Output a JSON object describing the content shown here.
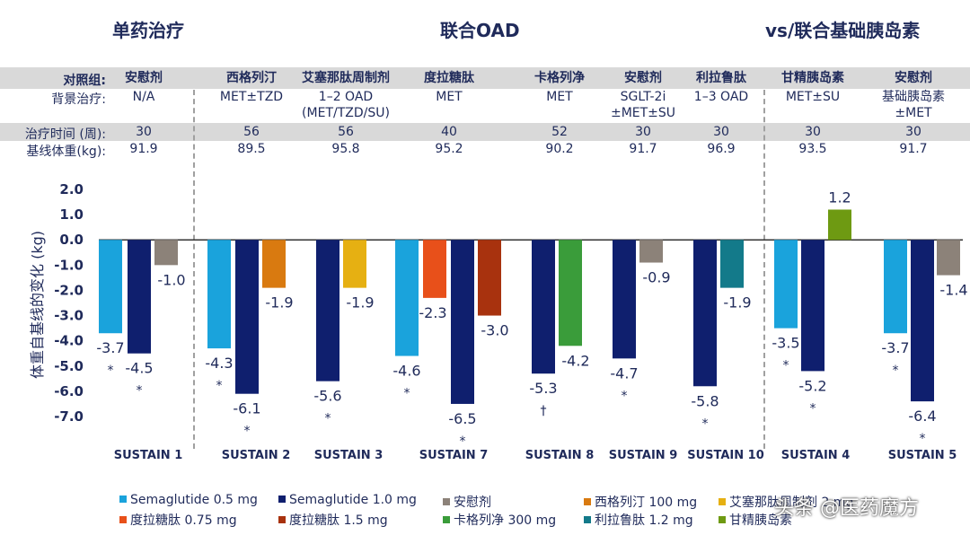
{
  "sections": [
    "单药治疗",
    "联合OAD",
    "vs/联合基础胰岛素"
  ],
  "row_labels": {
    "comparator": "对照组:",
    "background": "背景治疗:",
    "duration": "治疗时间 (周):",
    "baseline": "基线体重(kg):"
  },
  "trials": [
    {
      "comparator": "安慰剂",
      "background": [
        "N/A"
      ],
      "duration": "30",
      "baseline": "91.9"
    },
    {
      "comparator": "西格列汀",
      "background": [
        "MET±TZD"
      ],
      "duration": "56",
      "baseline": "89.5"
    },
    {
      "comparator": "艾塞那肽周制剂",
      "background": [
        "1–2 OAD",
        "(MET/TZD/SU)"
      ],
      "duration": "56",
      "baseline": "95.8"
    },
    {
      "comparator": "度拉糖肽",
      "background": [
        "MET"
      ],
      "duration": "40",
      "baseline": "95.2"
    },
    {
      "comparator": "卡格列净",
      "background": [
        "MET"
      ],
      "duration": "52",
      "baseline": "90.2"
    },
    {
      "comparator": "安慰剂",
      "background": [
        "SGLT-2i",
        "±MET±SU"
      ],
      "duration": "30",
      "baseline": "91.7"
    },
    {
      "comparator": "利拉鲁肽",
      "background": [
        "1–3 OAD"
      ],
      "duration": "30",
      "baseline": "96.9"
    },
    {
      "comparator": "甘精胰岛素",
      "background": [
        "MET±SU"
      ],
      "duration": "30",
      "baseline": "93.5"
    },
    {
      "comparator": "安慰剂",
      "background": [
        "基础胰岛素",
        "±MET"
      ],
      "duration": "30",
      "baseline": "91.7"
    }
  ],
  "colors": {
    "sema05": "#1aa3dc",
    "sema10": "#0f1f6e",
    "placebo": "#8c8279",
    "sitagliptin": "#d97a10",
    "exenatide": "#e6b012",
    "dula075": "#e8501a",
    "dula15": "#a8320e",
    "canagliflozin": "#3a9c3a",
    "liraglutide": "#137a8a",
    "glargine": "#6e9a12"
  },
  "chart_data": {
    "type": "bar",
    "ylabel": "体重自基线的变化 (kg)",
    "ylim": [
      -7.0,
      2.0
    ],
    "yticks": [
      "2.0",
      "1.0",
      "0.0",
      "-1.0",
      "-2.0",
      "-3.0",
      "-4.0",
      "-5.0",
      "-6.0",
      "-7.0"
    ],
    "categories": [
      "SUSTAIN 1",
      "SUSTAIN 2",
      "SUSTAIN 3",
      "SUSTAIN 7",
      "SUSTAIN 8",
      "SUSTAIN 9",
      "SUSTAIN 10",
      "SUSTAIN 4",
      "SUSTAIN 5"
    ],
    "bars": [
      {
        "series": "sema05",
        "value": -3.7,
        "label": "-3.7",
        "mark": "*"
      },
      {
        "series": "sema10",
        "value": -4.5,
        "label": "-4.5",
        "mark": "*"
      },
      {
        "series": "placebo",
        "value": -1.0,
        "label": "-1.0",
        "mark": ""
      },
      {
        "series": "sema05",
        "value": -4.3,
        "label": "-4.3",
        "mark": "*"
      },
      {
        "series": "sema10",
        "value": -6.1,
        "label": "-6.1",
        "mark": "*"
      },
      {
        "series": "sitagliptin",
        "value": -1.9,
        "label": "-1.9",
        "mark": ""
      },
      {
        "series": "sema10",
        "value": -5.6,
        "label": "-5.6",
        "mark": "*"
      },
      {
        "series": "exenatide",
        "value": -1.9,
        "label": "-1.9",
        "mark": ""
      },
      {
        "series": "sema05",
        "value": -4.6,
        "label": "-4.6",
        "mark": "*"
      },
      {
        "series": "dula075",
        "value": -2.3,
        "label": "-2.3",
        "mark": ""
      },
      {
        "series": "sema10",
        "value": -6.5,
        "label": "-6.5",
        "mark": "*"
      },
      {
        "series": "dula15",
        "value": -3.0,
        "label": "-3.0",
        "mark": ""
      },
      {
        "series": "sema10",
        "value": -5.3,
        "label": "-5.3",
        "mark": "†"
      },
      {
        "series": "canagliflozin",
        "value": -4.2,
        "label": "-4.2",
        "mark": ""
      },
      {
        "series": "sema10",
        "value": -4.7,
        "label": "-4.7",
        "mark": "*"
      },
      {
        "series": "placebo",
        "value": -0.9,
        "label": "-0.9",
        "mark": ""
      },
      {
        "series": "sema10",
        "value": -5.8,
        "label": "-5.8",
        "mark": "*"
      },
      {
        "series": "liraglutide",
        "value": -1.9,
        "label": "-1.9",
        "mark": ""
      },
      {
        "series": "sema05",
        "value": -3.5,
        "label": "-3.5",
        "mark": "*"
      },
      {
        "series": "sema10",
        "value": -5.2,
        "label": "-5.2",
        "mark": "*"
      },
      {
        "series": "glargine",
        "value": 1.2,
        "label": "1.2",
        "mark": ""
      },
      {
        "series": "sema05",
        "value": -3.7,
        "label": "-3.7",
        "mark": "*"
      },
      {
        "series": "sema10",
        "value": -6.4,
        "label": "-6.4",
        "mark": "*"
      },
      {
        "series": "placebo",
        "value": -1.4,
        "label": "-1.4",
        "mark": ""
      }
    ]
  },
  "legend": [
    {
      "series": "sema05",
      "label": "Semaglutide 0.5 mg"
    },
    {
      "series": "sema10",
      "label": "Semaglutide 1.0 mg"
    },
    {
      "series": "placebo",
      "label": "安慰剂"
    },
    {
      "series": "sitagliptin",
      "label": "西格列汀 100 mg"
    },
    {
      "series": "exenatide",
      "label": "艾塞那肽周制剂 2 mg"
    },
    {
      "series": "dula075",
      "label": "度拉糖肽 0.75 mg"
    },
    {
      "series": "dula15",
      "label": "度拉糖肽 1.5 mg"
    },
    {
      "series": "canagliflozin",
      "label": "卡格列净 300 mg"
    },
    {
      "series": "liraglutide",
      "label": "利拉鲁肽 1.2 mg"
    },
    {
      "series": "glargine",
      "label": "甘精胰岛素"
    }
  ],
  "watermark": "头条 @医药魔方"
}
